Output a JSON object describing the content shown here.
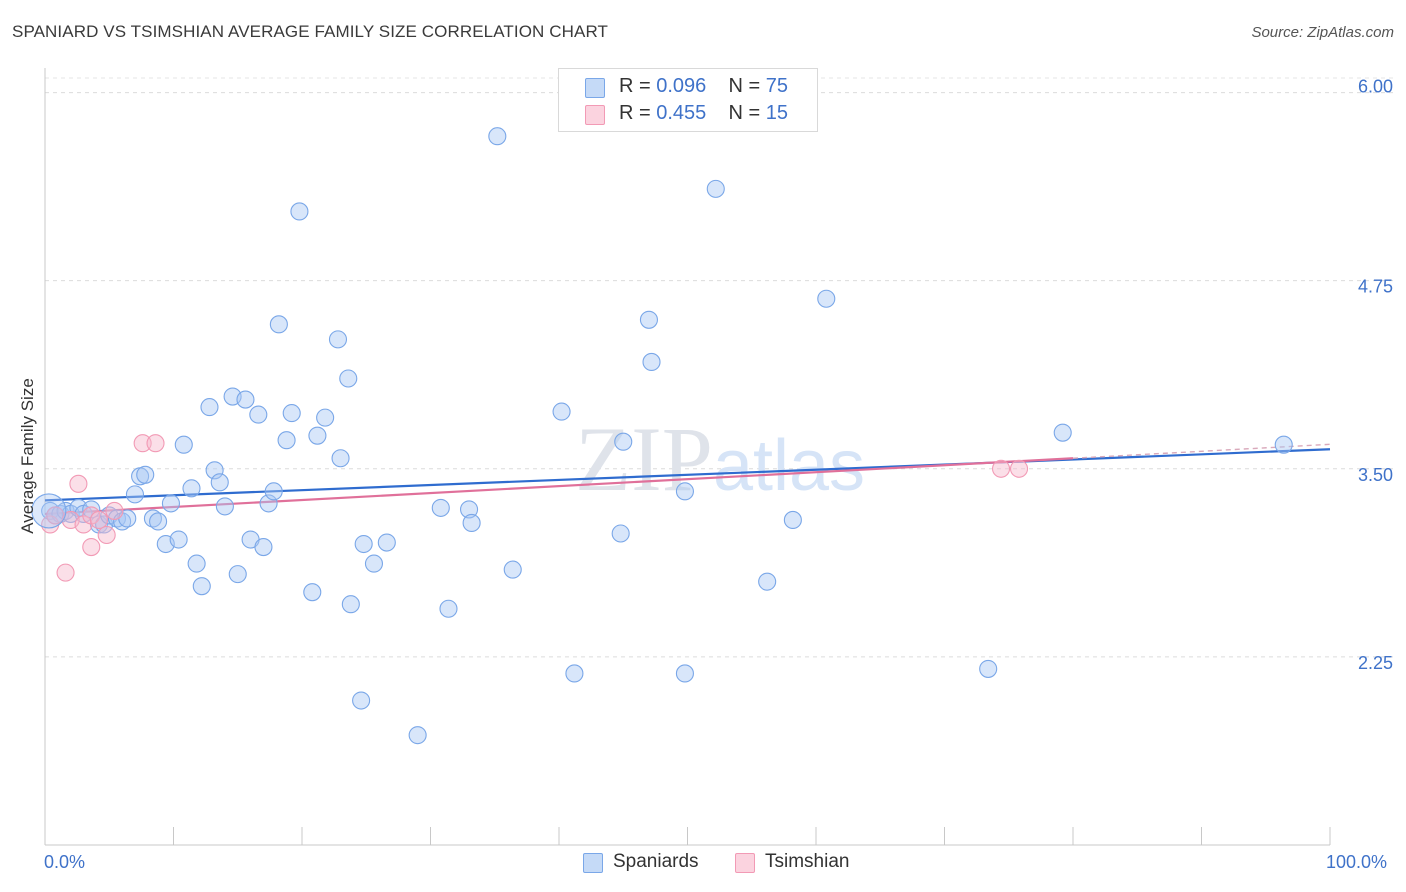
{
  "header": {
    "title": "SPANIARD VS TSIMSHIAN AVERAGE FAMILY SIZE CORRELATION CHART",
    "source": "Source: ZipAtlas.com"
  },
  "legend": {
    "r_label": "R =",
    "n_label": "N =",
    "spaniards": {
      "r": "0.096",
      "n": "75",
      "color": "#a9c8f5"
    },
    "tsimshian": {
      "r": "0.455",
      "n": "15",
      "color": "#f7b9cb"
    }
  },
  "chart_data": {
    "type": "scatter",
    "ylabel": "Average Family Size",
    "xlim": [
      0,
      100
    ],
    "ylim": [
      1.0,
      6.15
    ],
    "x_tick_labels": [
      "0.0%",
      "100.0%"
    ],
    "y_ticks": [
      2.25,
      3.5,
      4.75,
      6.0
    ],
    "y_tick_labels": [
      "2.25",
      "3.50",
      "4.75",
      "6.00"
    ],
    "grid": true,
    "watermark": "ZIPatlas",
    "series": [
      {
        "name": "Spaniards",
        "color": "#7aa7e8",
        "line_color": "#2f6ccf",
        "trend": {
          "x": [
            0,
            100
          ],
          "y": [
            3.29,
            3.63
          ]
        },
        "points": [
          [
            0.4,
            3.22
          ],
          [
            0.8,
            3.19
          ],
          [
            1.2,
            3.2
          ],
          [
            1.6,
            3.22
          ],
          [
            2.0,
            3.2
          ],
          [
            2.6,
            3.24
          ],
          [
            3.0,
            3.2
          ],
          [
            3.6,
            3.23
          ],
          [
            4.2,
            3.13
          ],
          [
            4.6,
            3.13
          ],
          [
            5.0,
            3.19
          ],
          [
            5.6,
            3.17
          ],
          [
            6.0,
            3.15
          ],
          [
            6.4,
            3.17
          ],
          [
            7.0,
            3.33
          ],
          [
            7.4,
            3.45
          ],
          [
            7.8,
            3.46
          ],
          [
            8.4,
            3.17
          ],
          [
            8.8,
            3.15
          ],
          [
            9.4,
            3.0
          ],
          [
            9.8,
            3.27
          ],
          [
            10.4,
            3.03
          ],
          [
            10.8,
            3.66
          ],
          [
            11.4,
            3.37
          ],
          [
            11.8,
            2.87
          ],
          [
            12.2,
            2.72
          ],
          [
            12.8,
            3.91
          ],
          [
            13.2,
            3.49
          ],
          [
            13.6,
            3.41
          ],
          [
            14.0,
            3.25
          ],
          [
            14.6,
            3.98
          ],
          [
            15.0,
            2.8
          ],
          [
            15.6,
            3.96
          ],
          [
            16.0,
            3.03
          ],
          [
            16.6,
            3.86
          ],
          [
            17.0,
            2.98
          ],
          [
            17.4,
            3.27
          ],
          [
            17.8,
            3.35
          ],
          [
            18.2,
            4.46
          ],
          [
            18.8,
            3.69
          ],
          [
            19.2,
            3.87
          ],
          [
            19.8,
            5.21
          ],
          [
            20.8,
            2.68
          ],
          [
            21.2,
            3.72
          ],
          [
            21.8,
            3.84
          ],
          [
            22.8,
            4.36
          ],
          [
            23.0,
            3.57
          ],
          [
            23.6,
            4.1
          ],
          [
            23.8,
            2.6
          ],
          [
            24.6,
            1.96
          ],
          [
            24.8,
            3.0
          ],
          [
            25.6,
            2.87
          ],
          [
            26.6,
            3.01
          ],
          [
            29.0,
            1.73
          ],
          [
            30.8,
            3.24
          ],
          [
            31.4,
            2.57
          ],
          [
            33.0,
            3.23
          ],
          [
            33.2,
            3.14
          ],
          [
            35.2,
            5.71
          ],
          [
            36.4,
            2.83
          ],
          [
            40.2,
            3.88
          ],
          [
            41.2,
            2.14
          ],
          [
            44.8,
            3.07
          ],
          [
            45.0,
            3.68
          ],
          [
            47.0,
            4.49
          ],
          [
            47.2,
            4.21
          ],
          [
            49.8,
            2.14
          ],
          [
            49.8,
            3.35
          ],
          [
            52.2,
            5.36
          ],
          [
            56.2,
            2.75
          ],
          [
            58.2,
            3.16
          ],
          [
            60.8,
            4.63
          ],
          [
            73.4,
            2.17
          ],
          [
            79.2,
            3.74
          ],
          [
            96.4,
            3.66
          ]
        ]
      },
      {
        "name": "Tsimshian",
        "color": "#f29ab5",
        "line_color": "#e0709a",
        "trend": {
          "x": [
            0,
            80
          ],
          "y": [
            3.2,
            3.57
          ]
        },
        "points": [
          [
            0.4,
            3.13
          ],
          [
            0.8,
            3.19
          ],
          [
            1.6,
            2.81
          ],
          [
            2.0,
            3.16
          ],
          [
            2.6,
            3.4
          ],
          [
            3.0,
            3.13
          ],
          [
            3.6,
            3.19
          ],
          [
            3.6,
            2.98
          ],
          [
            4.2,
            3.16
          ],
          [
            4.8,
            3.06
          ],
          [
            5.4,
            3.22
          ],
          [
            7.6,
            3.67
          ],
          [
            8.6,
            3.67
          ],
          [
            74.4,
            3.5
          ],
          [
            75.8,
            3.5
          ]
        ]
      }
    ]
  }
}
